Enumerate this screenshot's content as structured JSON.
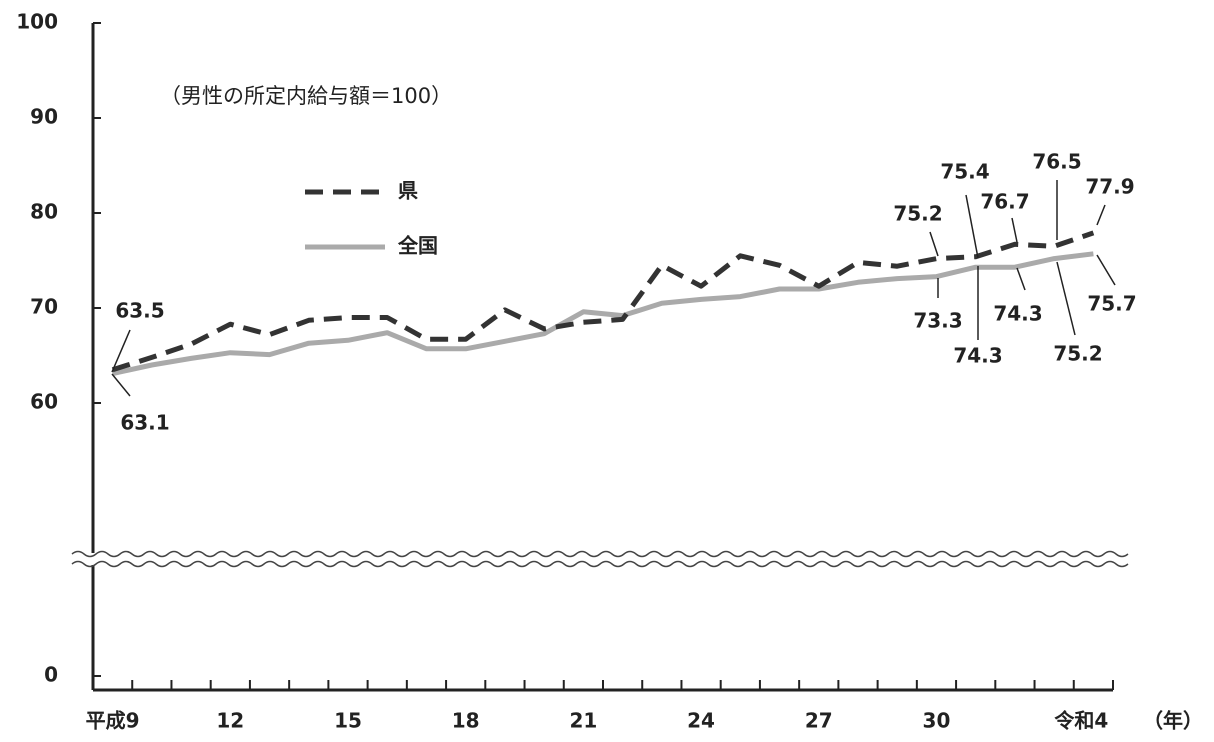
{
  "chart_data": {
    "type": "line",
    "annotation": "（男性の所定内給与額＝100）",
    "x_label": "（年）",
    "categories": [
      "平成9",
      null,
      null,
      "12",
      null,
      null,
      "15",
      null,
      null,
      "18",
      null,
      null,
      "21",
      null,
      null,
      "24",
      null,
      null,
      "27",
      null,
      null,
      "30",
      null,
      null,
      null,
      "令和4"
    ],
    "series": [
      {
        "name": "県",
        "color": "#333333",
        "dashed": true,
        "values": [
          63.5,
          64.8,
          66.2,
          68.3,
          67.2,
          68.7,
          69.0,
          69.0,
          66.7,
          66.7,
          69.8,
          67.8,
          68.5,
          68.8,
          74.5,
          72.3,
          75.5,
          74.5,
          72.3,
          74.8,
          74.4,
          75.2,
          75.4,
          76.7,
          76.5,
          77.9
        ]
      },
      {
        "name": "全国",
        "color": "#aaaaaa",
        "dashed": false,
        "values": [
          63.1,
          64.0,
          64.7,
          65.3,
          65.1,
          66.3,
          66.6,
          67.4,
          65.7,
          65.7,
          66.5,
          67.3,
          69.6,
          69.2,
          70.5,
          70.9,
          71.2,
          72.0,
          72.0,
          72.7,
          73.1,
          73.3,
          74.3,
          74.3,
          75.2,
          75.7
        ]
      }
    ],
    "ylim": [
      0,
      100
    ],
    "yticks": [
      0,
      60,
      70,
      80,
      90,
      100
    ],
    "axis_break": [
      0,
      50
    ],
    "grid": false
  }
}
